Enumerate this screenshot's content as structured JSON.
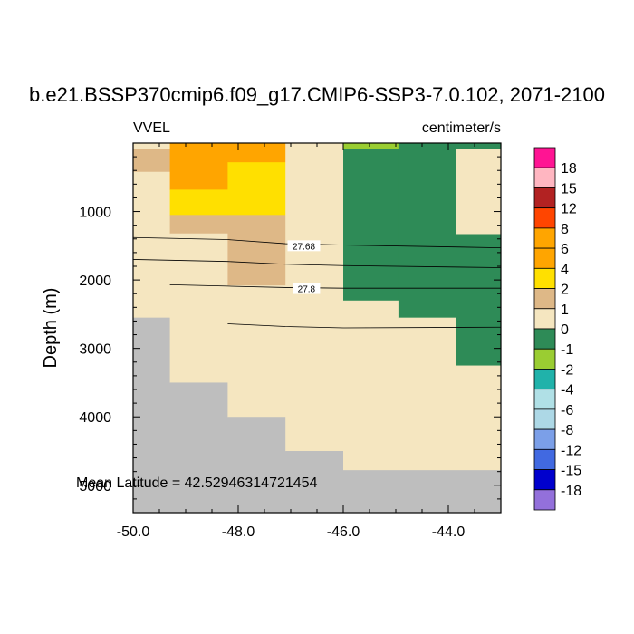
{
  "chart_data": {
    "type": "heatmap",
    "title": "b.e21.BSSP370cmip6.f09_g17.CMIP6-SSP3-7.0.102, 2071-2100",
    "variable_label": "VVEL",
    "units_label": "centimeter/s",
    "ylabel": "Depth (m)",
    "xlim": [
      -50.0,
      -43.0
    ],
    "ylim": [
      5400,
      0
    ],
    "x_ticks": [
      -50.0,
      -48.0,
      -46.0,
      -44.0
    ],
    "x_tick_labels": [
      "-50.0",
      "-48.0",
      "-46.0",
      "-44.0"
    ],
    "y_ticks": [
      1000,
      2000,
      3000,
      4000,
      5000
    ],
    "y_tick_labels": [
      "1000",
      "2000",
      "3000",
      "4000",
      "5000"
    ],
    "annotation": "Mean Latitude = 42.52946314721454",
    "colorbar": {
      "labels": [
        "18",
        "15",
        "12",
        "8",
        "6",
        "4",
        "2",
        "1",
        "0",
        "-1",
        "-2",
        "-4",
        "-6",
        "-8",
        "-12",
        "-15",
        "-18"
      ],
      "colors": [
        "#ff1493",
        "#ffb6c1",
        "#b22222",
        "#ff4500",
        "#ffa500",
        "#ffa500",
        "#ffe000",
        "#deb887",
        "#f5e6c0",
        "#2e8b57",
        "#9acd32",
        "#20b2aa",
        "#b0e0e6",
        "#add8e6",
        "#7b9fe8",
        "#4169e1",
        "#0000cd",
        "#9370db"
      ]
    },
    "cells": [
      {
        "x": [
          -50.0,
          -49.3
        ],
        "y": [
          0,
          80
        ],
        "v": "0 to 1"
      },
      {
        "x": [
          -50.0,
          -49.3
        ],
        "y": [
          80,
          420
        ],
        "v": "1 to 2"
      },
      {
        "x": [
          -50.0,
          -49.3
        ],
        "y": [
          420,
          2550
        ],
        "v": "0 to 1"
      },
      {
        "x": [
          -50.0,
          -49.3
        ],
        "y": [
          2550,
          5400
        ],
        "v": "missing"
      },
      {
        "x": [
          -49.3,
          -48.2
        ],
        "y": [
          0,
          680
        ],
        "v": "4 to 6"
      },
      {
        "x": [
          -49.3,
          -48.2
        ],
        "y": [
          680,
          1050
        ],
        "v": "2 to 4"
      },
      {
        "x": [
          -49.3,
          -48.2
        ],
        "y": [
          1050,
          1320
        ],
        "v": "1 to 2"
      },
      {
        "x": [
          -49.3,
          -48.2
        ],
        "y": [
          1320,
          3500
        ],
        "v": "0 to 1"
      },
      {
        "x": [
          -49.3,
          -48.2
        ],
        "y": [
          3500,
          5400
        ],
        "v": "missing"
      },
      {
        "x": [
          -48.2,
          -47.1
        ],
        "y": [
          0,
          280
        ],
        "v": "4 to 6"
      },
      {
        "x": [
          -48.2,
          -47.1
        ],
        "y": [
          280,
          1050
        ],
        "v": "2 to 4"
      },
      {
        "x": [
          -48.2,
          -47.1
        ],
        "y": [
          1050,
          2080
        ],
        "v": "1 to 2"
      },
      {
        "x": [
          -48.2,
          -47.1
        ],
        "y": [
          2080,
          4000
        ],
        "v": "0 to 1"
      },
      {
        "x": [
          -48.2,
          -47.1
        ],
        "y": [
          4000,
          5400
        ],
        "v": "missing"
      },
      {
        "x": [
          -47.1,
          -46.0
        ],
        "y": [
          0,
          4500
        ],
        "v": "0 to 1"
      },
      {
        "x": [
          -47.1,
          -46.0
        ],
        "y": [
          4500,
          5400
        ],
        "v": "missing"
      },
      {
        "x": [
          -46.0,
          -44.95
        ],
        "y": [
          0,
          80
        ],
        "v": "-1 to -2"
      },
      {
        "x": [
          -46.0,
          -44.95
        ],
        "y": [
          80,
          2300
        ],
        "v": "-1 to 0"
      },
      {
        "x": [
          -46.0,
          -44.95
        ],
        "y": [
          2300,
          4780
        ],
        "v": "0 to 1"
      },
      {
        "x": [
          -44.95,
          -43.85
        ],
        "y": [
          0,
          2550
        ],
        "v": "-1 to 0"
      },
      {
        "x": [
          -44.95,
          -43.85
        ],
        "y": [
          2550,
          4780
        ],
        "v": "0 to 1"
      },
      {
        "x": [
          -43.85,
          -43.0
        ],
        "y": [
          0,
          80
        ],
        "v": "-1 to 0"
      },
      {
        "x": [
          -43.85,
          -43.0
        ],
        "y": [
          80,
          1330
        ],
        "v": "0 to 1"
      },
      {
        "x": [
          -43.85,
          -43.0
        ],
        "y": [
          1330,
          3250
        ],
        "v": "-1 to 0"
      },
      {
        "x": [
          -43.85,
          -43.0
        ],
        "y": [
          3250,
          4780
        ],
        "v": "0 to 1"
      },
      {
        "x": [
          -46.0,
          -43.0
        ],
        "y": [
          4780,
          5400
        ],
        "v": "missing"
      }
    ],
    "contours": [
      {
        "label": "",
        "points": [
          [
            -50.0,
            1380
          ],
          [
            -48.2,
            1410
          ],
          [
            -47.1,
            1470
          ],
          [
            -46.0,
            1490
          ],
          [
            -43.0,
            1530
          ]
        ]
      },
      {
        "label": "27.68",
        "points": [
          [
            -50.0,
            1700
          ],
          [
            -48.2,
            1730
          ],
          [
            -47.1,
            1770
          ],
          [
            -46.0,
            1790
          ],
          [
            -43.0,
            1820
          ]
        ]
      },
      {
        "label": "",
        "points": [
          [
            -49.3,
            2070
          ],
          [
            -48.2,
            2090
          ],
          [
            -47.1,
            2110
          ],
          [
            -46.0,
            2120
          ],
          [
            -43.0,
            2120
          ]
        ]
      },
      {
        "label": "27.8",
        "points": [
          [
            -48.2,
            2640
          ],
          [
            -47.1,
            2680
          ],
          [
            -46.0,
            2700
          ],
          [
            -43.0,
            2690
          ]
        ]
      }
    ],
    "contour_labels": [
      {
        "text": "27.68",
        "x": -46.75,
        "y": 1500
      },
      {
        "text": "27.8",
        "x": -46.7,
        "y": 2125
      }
    ]
  }
}
